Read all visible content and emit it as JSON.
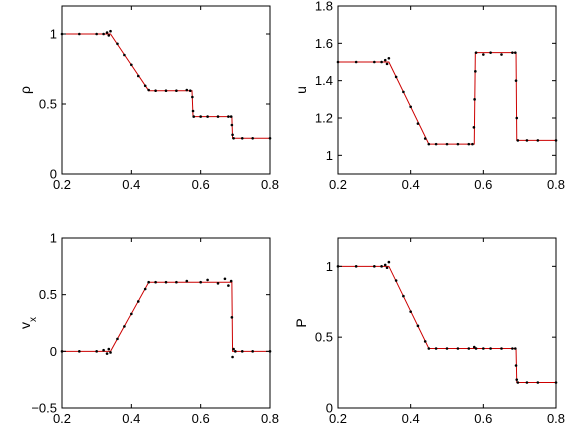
{
  "chart_data": [
    {
      "type": "line",
      "ylabel": "ρ",
      "ylabel_sub": "",
      "xlim": [
        0.2,
        0.8
      ],
      "ylim": [
        0,
        1.2
      ],
      "xticks": [
        0.2,
        0.4,
        0.6,
        0.8
      ],
      "xtick_labels": [
        "0.2",
        "0.4",
        "0.6",
        "0.8"
      ],
      "yticks": [
        0,
        0.5,
        1
      ],
      "ytick_labels": [
        "0",
        "0.5",
        "1"
      ],
      "grid": false,
      "series": [
        {
          "style": "line",
          "color": "#cc0000",
          "x": [
            0.2,
            0.34,
            0.45,
            0.575,
            0.578,
            0.69,
            0.692,
            0.8
          ],
          "y": [
            1.0,
            1.0,
            0.595,
            0.595,
            0.41,
            0.41,
            0.255,
            0.255
          ]
        },
        {
          "style": "dots",
          "color": "#000000",
          "x": [
            0.2,
            0.25,
            0.3,
            0.32,
            0.33,
            0.335,
            0.34,
            0.36,
            0.38,
            0.4,
            0.42,
            0.44,
            0.45,
            0.47,
            0.5,
            0.53,
            0.56,
            0.57,
            0.576,
            0.578,
            0.58,
            0.6,
            0.62,
            0.65,
            0.68,
            0.688,
            0.69,
            0.692,
            0.695,
            0.72,
            0.75,
            0.8
          ],
          "y": [
            1.0,
            1.0,
            1.0,
            1.0,
            1.01,
            0.99,
            1.02,
            0.93,
            0.85,
            0.78,
            0.7,
            0.63,
            0.6,
            0.595,
            0.595,
            0.595,
            0.6,
            0.595,
            0.55,
            0.45,
            0.41,
            0.41,
            0.41,
            0.41,
            0.41,
            0.41,
            0.35,
            0.28,
            0.255,
            0.255,
            0.255,
            0.255
          ]
        }
      ]
    },
    {
      "type": "line",
      "ylabel": "u",
      "ylabel_sub": "",
      "xlim": [
        0.2,
        0.8
      ],
      "ylim": [
        0.9,
        1.8
      ],
      "xticks": [
        0.2,
        0.4,
        0.6,
        0.8
      ],
      "xtick_labels": [
        "0.2",
        "0.4",
        "0.6",
        "0.8"
      ],
      "yticks": [
        1,
        1.2,
        1.4,
        1.6,
        1.8
      ],
      "ytick_labels": [
        "1",
        "1.2",
        "1.4",
        "1.6",
        "1.8"
      ],
      "grid": false,
      "series": [
        {
          "style": "line",
          "color": "#cc0000",
          "x": [
            0.2,
            0.34,
            0.45,
            0.575,
            0.578,
            0.69,
            0.692,
            0.8
          ],
          "y": [
            1.5,
            1.5,
            1.06,
            1.06,
            1.55,
            1.55,
            1.08,
            1.08
          ]
        },
        {
          "style": "dots",
          "color": "#000000",
          "x": [
            0.2,
            0.25,
            0.3,
            0.32,
            0.33,
            0.335,
            0.34,
            0.36,
            0.38,
            0.4,
            0.42,
            0.44,
            0.45,
            0.47,
            0.5,
            0.53,
            0.56,
            0.57,
            0.574,
            0.576,
            0.578,
            0.58,
            0.6,
            0.62,
            0.65,
            0.68,
            0.688,
            0.69,
            0.692,
            0.695,
            0.72,
            0.75,
            0.8
          ],
          "y": [
            1.5,
            1.5,
            1.5,
            1.5,
            1.51,
            1.49,
            1.52,
            1.42,
            1.34,
            1.26,
            1.17,
            1.09,
            1.06,
            1.06,
            1.06,
            1.06,
            1.06,
            1.06,
            1.15,
            1.3,
            1.45,
            1.55,
            1.54,
            1.55,
            1.54,
            1.55,
            1.55,
            1.4,
            1.2,
            1.08,
            1.08,
            1.08,
            1.08
          ]
        }
      ]
    },
    {
      "type": "line",
      "ylabel": "v",
      "ylabel_sub": "x",
      "xlim": [
        0.2,
        0.8
      ],
      "ylim": [
        -0.5,
        1
      ],
      "xticks": [
        0.2,
        0.4,
        0.6,
        0.8
      ],
      "xtick_labels": [
        "0.2",
        "0.4",
        "0.6",
        "0.8"
      ],
      "yticks": [
        -0.5,
        0,
        0.5,
        1
      ],
      "ytick_labels": [
        "−0.5",
        "0",
        "0.5",
        "1"
      ],
      "grid": false,
      "series": [
        {
          "style": "line",
          "color": "#cc0000",
          "x": [
            0.2,
            0.34,
            0.45,
            0.69,
            0.692,
            0.8
          ],
          "y": [
            0.0,
            0.0,
            0.61,
            0.61,
            0.0,
            0.0
          ]
        },
        {
          "style": "dots",
          "color": "#000000",
          "x": [
            0.2,
            0.25,
            0.3,
            0.32,
            0.33,
            0.335,
            0.34,
            0.36,
            0.38,
            0.4,
            0.42,
            0.44,
            0.45,
            0.47,
            0.5,
            0.53,
            0.56,
            0.6,
            0.62,
            0.65,
            0.67,
            0.68,
            0.688,
            0.69,
            0.692,
            0.695,
            0.7,
            0.72,
            0.75,
            0.8
          ],
          "y": [
            0.0,
            0.0,
            0.0,
            0.01,
            -0.02,
            0.02,
            -0.01,
            0.11,
            0.22,
            0.33,
            0.44,
            0.55,
            0.61,
            0.61,
            0.61,
            0.61,
            0.62,
            0.61,
            0.63,
            0.6,
            0.64,
            0.58,
            0.62,
            0.3,
            -0.05,
            0.02,
            0.0,
            0.0,
            0.0,
            0.0
          ]
        }
      ]
    },
    {
      "type": "line",
      "ylabel": "P",
      "ylabel_sub": "",
      "xlim": [
        0.2,
        0.8
      ],
      "ylim": [
        0,
        1.2
      ],
      "xticks": [
        0.2,
        0.4,
        0.6,
        0.8
      ],
      "xtick_labels": [
        "0.2",
        "0.4",
        "0.6",
        "0.8"
      ],
      "yticks": [
        0,
        0.5,
        1
      ],
      "ytick_labels": [
        "0",
        "0.5",
        "1"
      ],
      "grid": false,
      "series": [
        {
          "style": "line",
          "color": "#cc0000",
          "x": [
            0.2,
            0.34,
            0.45,
            0.69,
            0.692,
            0.8
          ],
          "y": [
            1.0,
            1.0,
            0.42,
            0.42,
            0.18,
            0.18
          ]
        },
        {
          "style": "dots",
          "color": "#000000",
          "x": [
            0.2,
            0.25,
            0.3,
            0.32,
            0.33,
            0.335,
            0.34,
            0.36,
            0.38,
            0.4,
            0.42,
            0.44,
            0.45,
            0.47,
            0.5,
            0.53,
            0.56,
            0.575,
            0.58,
            0.6,
            0.62,
            0.65,
            0.68,
            0.688,
            0.69,
            0.692,
            0.695,
            0.72,
            0.75,
            0.8
          ],
          "y": [
            1.0,
            1.0,
            1.0,
            1.0,
            1.01,
            0.99,
            1.03,
            0.9,
            0.79,
            0.68,
            0.58,
            0.47,
            0.42,
            0.42,
            0.42,
            0.42,
            0.42,
            0.43,
            0.42,
            0.42,
            0.42,
            0.42,
            0.42,
            0.42,
            0.3,
            0.2,
            0.18,
            0.18,
            0.18,
            0.18
          ]
        }
      ]
    }
  ]
}
